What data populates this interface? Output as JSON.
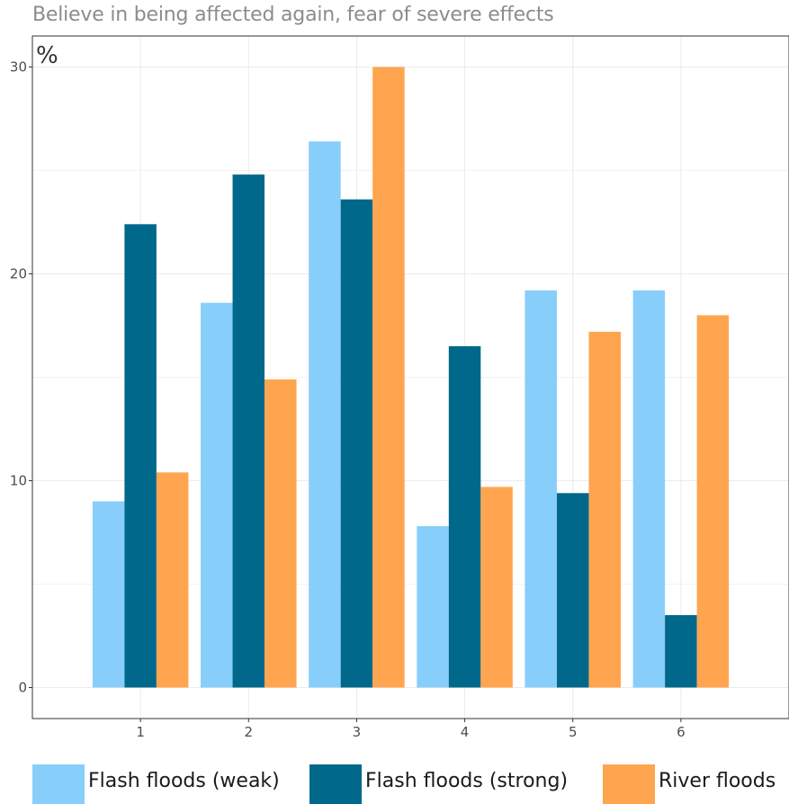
{
  "chart_data": {
    "type": "bar",
    "title": "Believe in being affected again, fear of severe effects",
    "ylabel": "%",
    "xlabel": "",
    "categories": [
      "1",
      "2",
      "3",
      "4",
      "5",
      "6"
    ],
    "ylim": [
      -1.5,
      31.5
    ],
    "yticks": [
      0,
      10,
      20,
      30
    ],
    "grid": true,
    "legend_position": "bottom",
    "series": [
      {
        "name": "Flash floods (weak)",
        "color": "#87CEFA",
        "values": [
          9.0,
          18.6,
          26.4,
          7.8,
          19.2,
          19.2
        ]
      },
      {
        "name": "Flash floods (strong)",
        "color": "#00688B",
        "values": [
          22.4,
          24.8,
          23.6,
          16.5,
          9.4,
          3.5
        ]
      },
      {
        "name": "River floods",
        "color": "#FFA54F",
        "values": [
          10.4,
          14.9,
          30.0,
          9.7,
          17.2,
          18.0
        ]
      }
    ]
  }
}
